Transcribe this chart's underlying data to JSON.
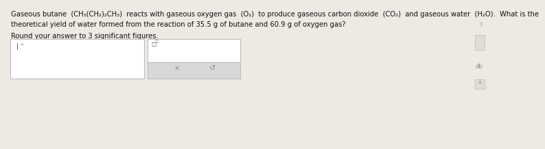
{
  "bg_color": "#edeae4",
  "text_color": "#111111",
  "line1": "Gaseous butane  (CH₃(CH₂)₂CH₃)  reacts with gaseous oxygen gas  (O₂)  to produce gaseous carbon dioxide  (CO₂)  and gaseous water  (H₂O).  What is the",
  "line2": "theoretical yield of water formed from the reaction of 35.5 g of butane and 60.9 g of oxygen gas?",
  "line4": "Round your answer to 3 significant figures.",
  "font_size_main": 7.2,
  "box_border_color": "#bbbbbb",
  "box_fill_color": "#ffffff",
  "button_fill_color": "#d8d8d8",
  "button_text_color": "#888888",
  "icon1_text": "ǀₘ",
  "icon2_text": "□",
  "icon2b_text": "□",
  "sidebar_q": "?",
  "sidebar_lines": "≡",
  "sidebar_db": "db",
  "sidebar_box": "4"
}
